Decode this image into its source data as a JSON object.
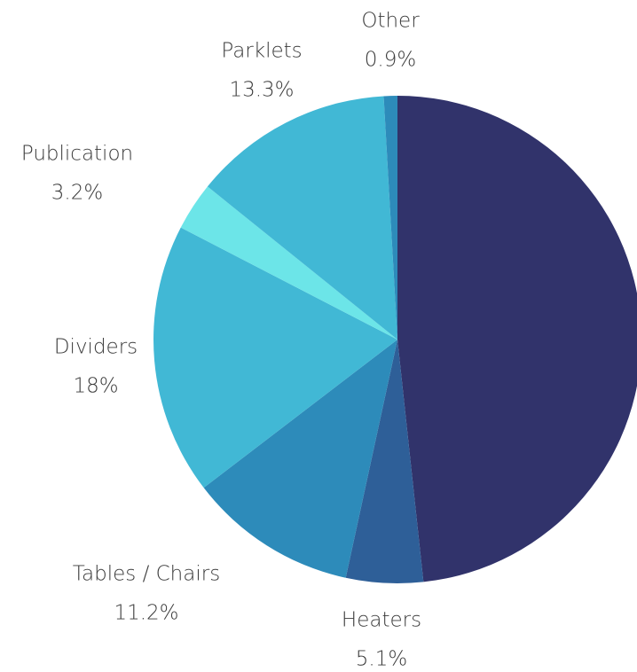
{
  "chart_data": {
    "type": "pie",
    "categories": [
      null,
      "Heaters",
      "Tables / Chairs",
      "Dividers",
      "Publication",
      "Parklets",
      "Other"
    ],
    "values": [
      48.3,
      5.1,
      11.2,
      18,
      3.2,
      13.3,
      0.9
    ],
    "value_labels": [
      null,
      "5.1%",
      "11.2%",
      "18%",
      "3.2%",
      "13.3%",
      "0.9%"
    ],
    "colors": [
      "#31336b",
      "#2e5f98",
      "#2d8bba",
      "#41b8d5",
      "#6ce5e8",
      "#41b8d5",
      "#2d8bba"
    ]
  }
}
